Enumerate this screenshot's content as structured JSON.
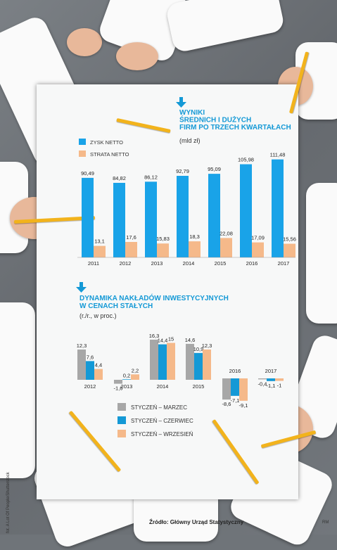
{
  "chart_data": [
    {
      "type": "bar",
      "title": "WYNIKI ŚREDNICH I DUŻYCH FIRM PO TRZECH KWARTAŁACH",
      "subtitle": "(mld zł)",
      "categories": [
        "2011",
        "2012",
        "2013",
        "2014",
        "2015",
        "2016",
        "2017"
      ],
      "series": [
        {
          "name": "ZYSK NETTO",
          "values": [
            90.49,
            84.82,
            86.12,
            92.79,
            95.09,
            105.98,
            111.48
          ],
          "labels": [
            "90,49",
            "84,82",
            "86,12",
            "92,79",
            "95,09",
            "105,98",
            "111,48"
          ]
        },
        {
          "name": "STRATA NETTO",
          "values": [
            13.1,
            17.6,
            15.83,
            18.3,
            22.08,
            17.09,
            15.56
          ],
          "labels": [
            "13,1",
            "17,6",
            "15,83",
            "18,3",
            "22,08",
            "17,09",
            "15,56"
          ]
        }
      ],
      "colors": [
        "#19a3e8",
        "#f5b98a"
      ]
    },
    {
      "type": "bar",
      "title": "DYNAMIKA NAKŁADÓW INWESTYCYJNYCH W CENACH STAŁYCH",
      "subtitle": "(r./r., w proc.)",
      "categories": [
        "2012",
        "2013",
        "2014",
        "2015",
        "2016",
        "2017"
      ],
      "series": [
        {
          "name": "STYCZEŃ – MARZEC",
          "values": [
            12.3,
            -1.6,
            16.3,
            14.6,
            -8.6,
            -0.4
          ],
          "labels": [
            "12,3",
            "-1,6",
            "16,3",
            "14,6",
            "-8,6",
            "-0,4"
          ]
        },
        {
          "name": "STYCZEŃ – CZERWIEC",
          "values": [
            7.6,
            0.2,
            14.4,
            10.9,
            -7.1,
            -1.1
          ],
          "labels": [
            "7,6",
            "0,2",
            "14,4",
            "10,9",
            "-7,1",
            "-1,1"
          ]
        },
        {
          "name": "STYCZEŃ – WRZESIEŃ",
          "values": [
            4.4,
            2.2,
            15,
            12.3,
            -9.1,
            -1
          ],
          "labels": [
            "4,4",
            "2,2",
            "15",
            "12,3",
            "-9,1",
            "-1"
          ]
        }
      ],
      "colors": [
        "#a7a7a7",
        "#1499d6",
        "#f5b98a"
      ]
    }
  ],
  "source": "Źródło: Główny Urząd Statystyczny",
  "photo_credit": "fot. A Lot Of People/Shutterstock",
  "author": "RM"
}
